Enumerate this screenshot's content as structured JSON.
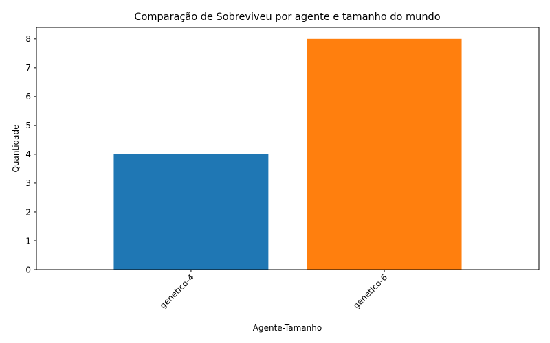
{
  "chart_data": {
    "type": "bar",
    "title": "Comparação de Sobreviveu por agente e tamanho do mundo",
    "xlabel": "Agente-Tamanho",
    "ylabel": "Quantidade",
    "categories": [
      "genetico-4",
      "genetico-6"
    ],
    "values": [
      4,
      8
    ],
    "colors": [
      "#1f77b4",
      "#ff7f0e"
    ],
    "ylim": [
      0,
      8.4
    ],
    "yticks": [
      0,
      1,
      2,
      3,
      4,
      5,
      6,
      7,
      8
    ],
    "xtick_rotation_deg": 45,
    "grid": false,
    "legend": "none"
  }
}
